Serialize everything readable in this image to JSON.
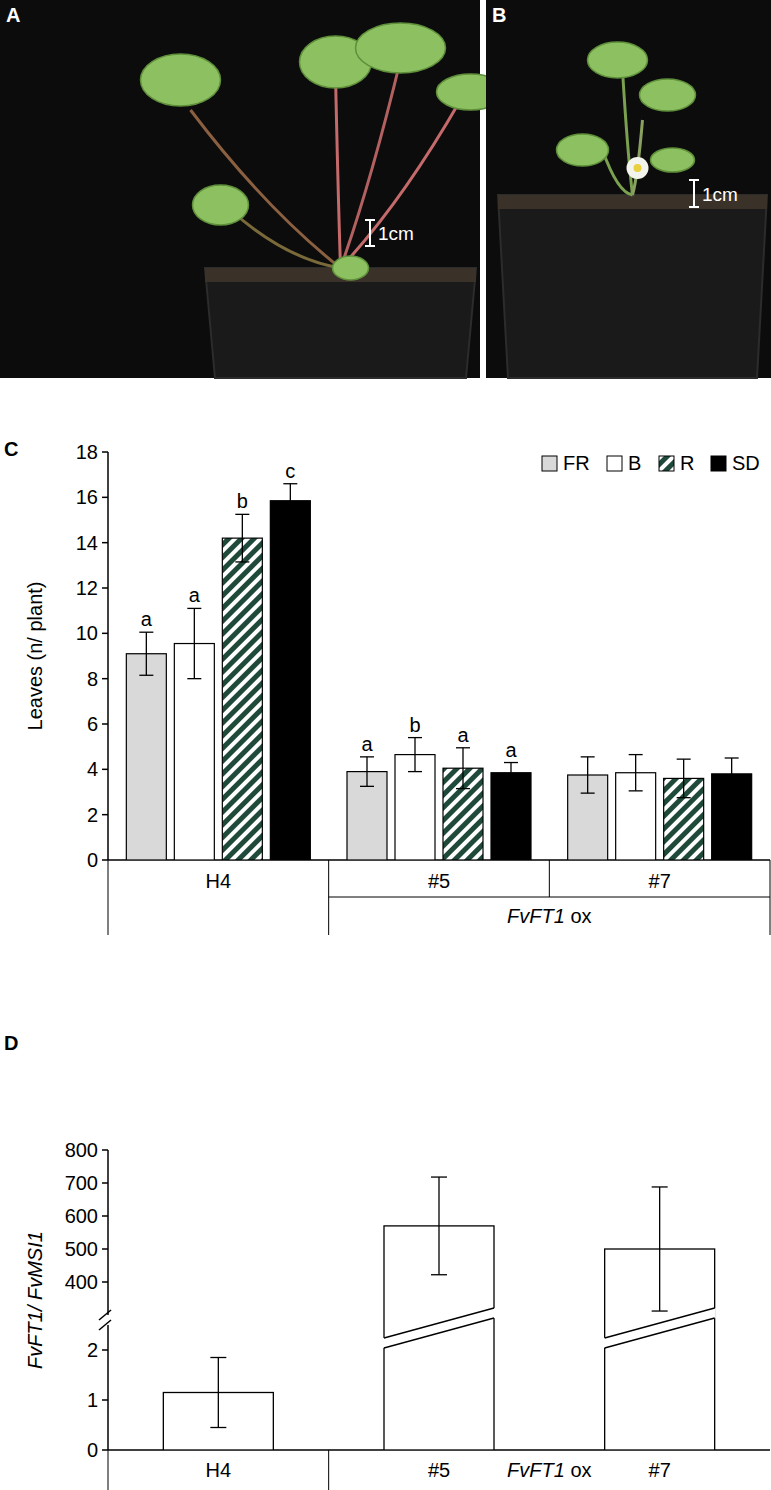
{
  "photos": [
    {
      "label": "A",
      "scale_bar": "1cm"
    },
    {
      "label": "B",
      "scale_bar": "1cm"
    }
  ],
  "chart_data": [
    {
      "type": "bar",
      "title": "C",
      "y_label": "Leaves (n/ plant)",
      "categories": [
        "H4",
        "#5",
        "#7"
      ],
      "group_label": "FvFT1 ox",
      "group_categories": [
        "#5",
        "#7"
      ],
      "series": [
        {
          "name": "FR",
          "color": "#d9d9d9",
          "values": [
            9.1,
            3.9,
            3.75
          ],
          "errors": [
            0.95,
            0.65,
            0.8
          ],
          "annotations": [
            "a",
            "a",
            null
          ]
        },
        {
          "name": "B",
          "color": "#ffffff",
          "values": [
            9.55,
            4.65,
            3.85
          ],
          "errors": [
            1.55,
            0.75,
            0.8
          ],
          "annotations": [
            "a",
            "b",
            null
          ]
        },
        {
          "name": "R",
          "color": "#1f4a3a",
          "line_style": "hatched",
          "values": [
            14.2,
            4.05,
            3.6
          ],
          "errors": [
            1.05,
            0.9,
            0.85
          ],
          "annotations": [
            "b",
            "a",
            null
          ]
        },
        {
          "name": "SD",
          "color": "#000000",
          "values": [
            15.85,
            3.85,
            3.8
          ],
          "errors": [
            0.75,
            0.45,
            0.7
          ],
          "annotations": [
            "c",
            "a",
            null
          ]
        }
      ],
      "ylim": [
        0,
        18
      ],
      "yticks": [
        0,
        2,
        4,
        6,
        8,
        10,
        12,
        14,
        16,
        18
      ],
      "legend": "top-right"
    },
    {
      "type": "bar",
      "title": "D",
      "y_label": "FvFT1/ FvMSI1",
      "categories": [
        "H4",
        "#5",
        "#7"
      ],
      "group_label": "FvFT1 ox",
      "group_categories": [
        "#5",
        "#7"
      ],
      "values": [
        1.15,
        570,
        500
      ],
      "errors": [
        0.7,
        148,
        188
      ],
      "color": "#ffffff",
      "ylim": [
        0,
        800
      ],
      "yticks": [
        0,
        1,
        2,
        400,
        500,
        600,
        700,
        800
      ],
      "y_break": [
        2.5,
        300
      ]
    }
  ]
}
